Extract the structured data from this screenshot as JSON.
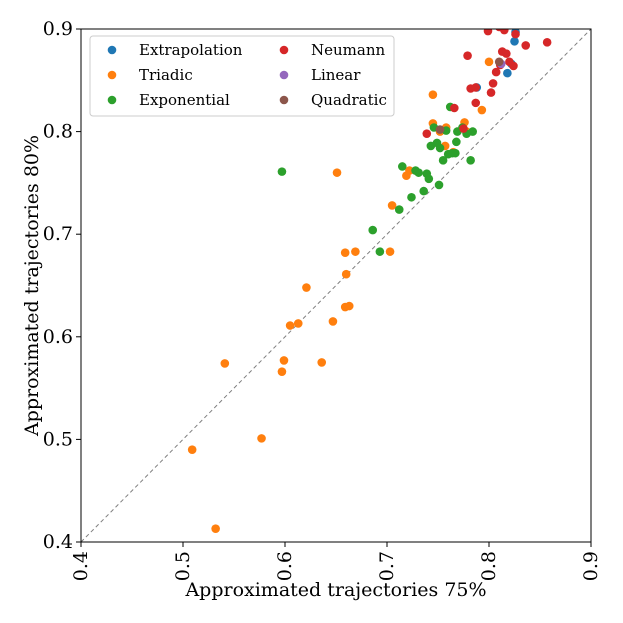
{
  "chart_data": {
    "type": "scatter",
    "title": "",
    "xlabel": "Approximated trajectories 75%",
    "ylabel": "Approximated trajectories 80%",
    "xlim": [
      0.4,
      0.9
    ],
    "ylim": [
      0.4,
      0.9
    ],
    "xticks": [
      "0.4",
      "0.5",
      "0.6",
      "0.7",
      "0.8",
      "0.9"
    ],
    "yticks": [
      "0.4",
      "0.5",
      "0.6",
      "0.7",
      "0.8",
      "0.9"
    ],
    "grid": false,
    "reference_line": "y = x (dashed gray)",
    "legend_position": "top-left",
    "series": [
      {
        "name": "Extrapolation",
        "color": "#1f77b4",
        "points": [
          [
            0.825,
            0.888
          ],
          [
            0.818,
            0.857
          ],
          [
            0.822,
            0.866
          ],
          [
            0.826,
            0.897
          ],
          [
            0.788,
            0.843
          ]
        ]
      },
      {
        "name": "Triadic",
        "color": "#ff7f0e",
        "points": [
          [
            0.532,
            0.413
          ],
          [
            0.509,
            0.49
          ],
          [
            0.577,
            0.501
          ],
          [
            0.541,
            0.574
          ],
          [
            0.597,
            0.566
          ],
          [
            0.599,
            0.577
          ],
          [
            0.605,
            0.611
          ],
          [
            0.613,
            0.613
          ],
          [
            0.621,
            0.648
          ],
          [
            0.636,
            0.575
          ],
          [
            0.647,
            0.615
          ],
          [
            0.659,
            0.629
          ],
          [
            0.663,
            0.63
          ],
          [
            0.659,
            0.682
          ],
          [
            0.66,
            0.661
          ],
          [
            0.669,
            0.683
          ],
          [
            0.651,
            0.76
          ],
          [
            0.703,
            0.683
          ],
          [
            0.705,
            0.728
          ],
          [
            0.719,
            0.757
          ],
          [
            0.722,
            0.762
          ],
          [
            0.745,
            0.808
          ],
          [
            0.745,
            0.836
          ],
          [
            0.752,
            0.8
          ],
          [
            0.757,
            0.786
          ],
          [
            0.758,
            0.804
          ],
          [
            0.776,
            0.809
          ],
          [
            0.778,
            0.8
          ],
          [
            0.793,
            0.821
          ],
          [
            0.8,
            0.868
          ],
          [
            0.765,
            0.78
          ]
        ]
      },
      {
        "name": "Exponential",
        "color": "#2ca02c",
        "points": [
          [
            0.597,
            0.761
          ],
          [
            0.686,
            0.704
          ],
          [
            0.693,
            0.683
          ],
          [
            0.712,
            0.724
          ],
          [
            0.715,
            0.766
          ],
          [
            0.724,
            0.736
          ],
          [
            0.728,
            0.762
          ],
          [
            0.731,
            0.76
          ],
          [
            0.736,
            0.742
          ],
          [
            0.739,
            0.759
          ],
          [
            0.741,
            0.754
          ],
          [
            0.743,
            0.786
          ],
          [
            0.746,
            0.804
          ],
          [
            0.749,
            0.789
          ],
          [
            0.751,
            0.748
          ],
          [
            0.752,
            0.784
          ],
          [
            0.755,
            0.772
          ],
          [
            0.758,
            0.801
          ],
          [
            0.76,
            0.778
          ],
          [
            0.762,
            0.824
          ],
          [
            0.764,
            0.779
          ],
          [
            0.767,
            0.779
          ],
          [
            0.768,
            0.79
          ],
          [
            0.769,
            0.8
          ],
          [
            0.774,
            0.804
          ],
          [
            0.778,
            0.798
          ],
          [
            0.782,
            0.772
          ],
          [
            0.784,
            0.8
          ]
        ]
      },
      {
        "name": "Neumann",
        "color": "#d62728",
        "points": [
          [
            0.739,
            0.798
          ],
          [
            0.766,
            0.823
          ],
          [
            0.775,
            0.803
          ],
          [
            0.779,
            0.874
          ],
          [
            0.782,
            0.842
          ],
          [
            0.787,
            0.843
          ],
          [
            0.787,
            0.828
          ],
          [
            0.799,
            0.898
          ],
          [
            0.802,
            0.838
          ],
          [
            0.804,
            0.847
          ],
          [
            0.807,
            0.858
          ],
          [
            0.81,
            0.902
          ],
          [
            0.811,
            0.865
          ],
          [
            0.813,
            0.878
          ],
          [
            0.815,
            0.899
          ],
          [
            0.817,
            0.876
          ],
          [
            0.82,
            0.868
          ],
          [
            0.824,
            0.864
          ],
          [
            0.826,
            0.895
          ],
          [
            0.836,
            0.884
          ],
          [
            0.857,
            0.887
          ]
        ]
      },
      {
        "name": "Linear",
        "color": "#9467bd",
        "points": [
          [
            0.812,
            0.866
          ]
        ]
      },
      {
        "name": "Quadratic",
        "color": "#8c564b",
        "points": [
          [
            0.752,
            0.802
          ],
          [
            0.81,
            0.868
          ]
        ]
      }
    ]
  }
}
